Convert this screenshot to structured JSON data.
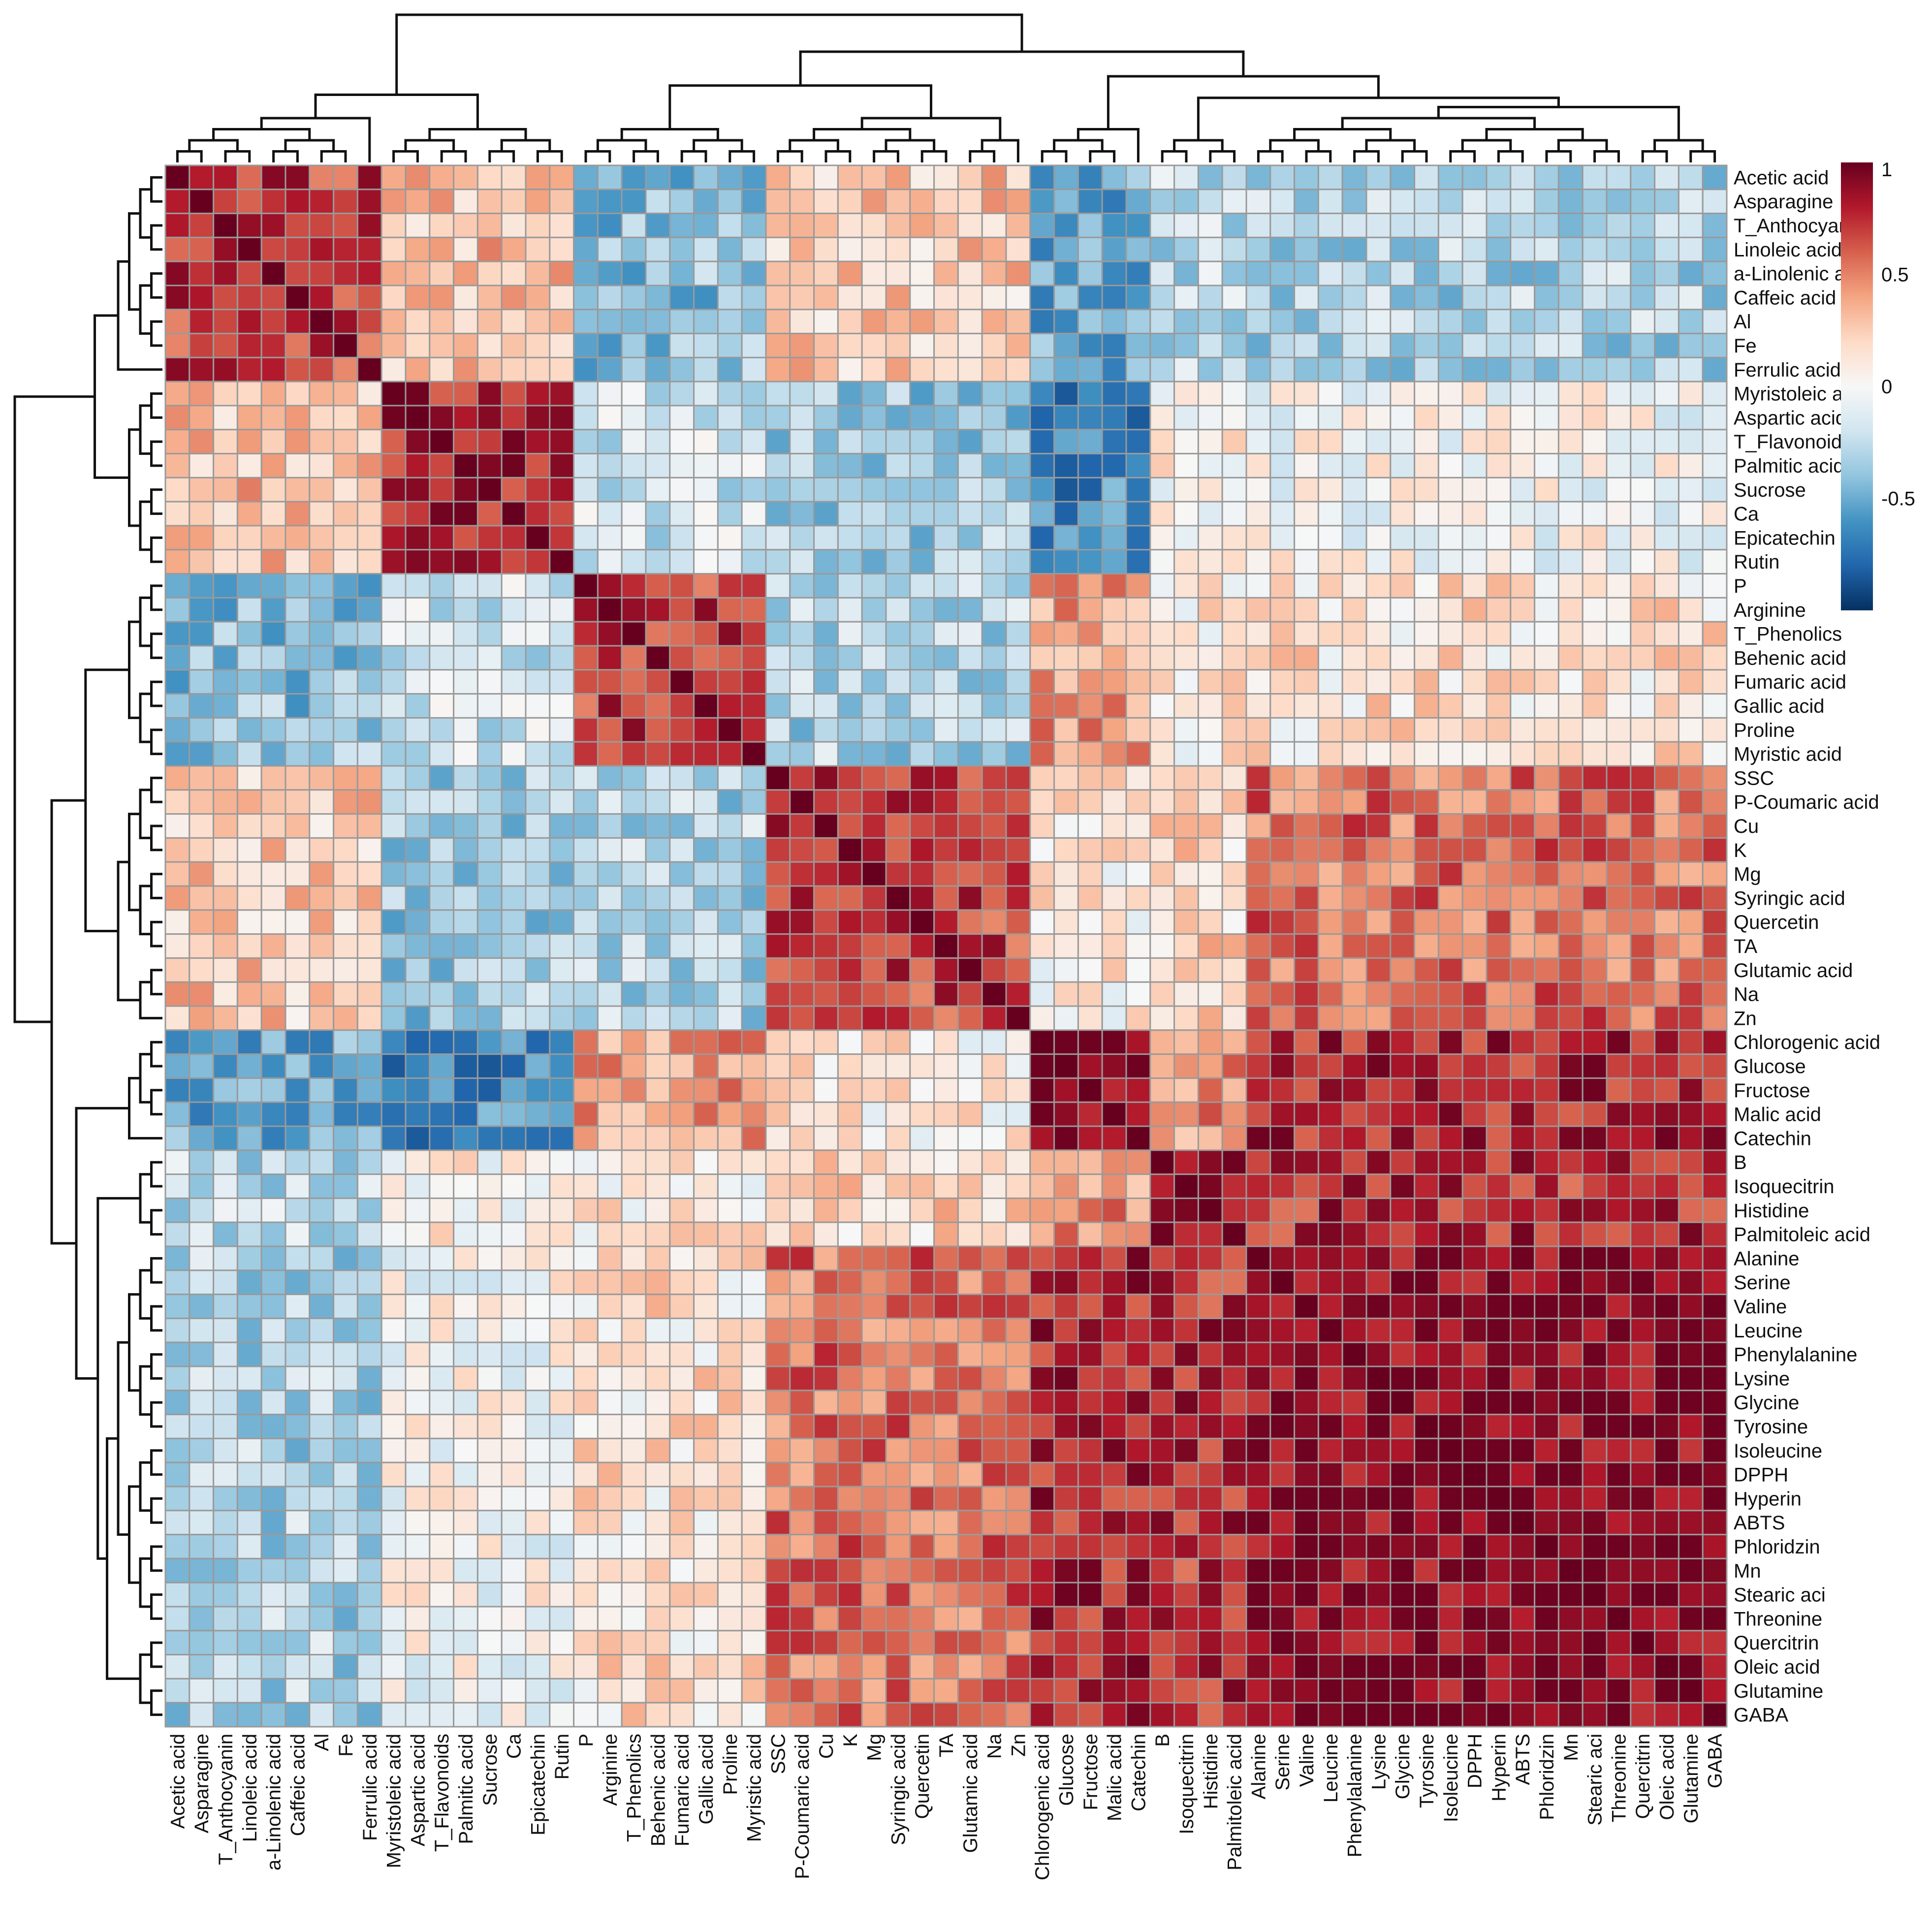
{
  "chart_data": {
    "type": "heatmap",
    "title": "",
    "labels": [
      "Acetic acid",
      "Asparagine",
      "T_Anthocyanin",
      "Linoleic acid",
      "a-Linolenic acid",
      "Caffeic acid",
      "Al",
      "Fe",
      "Ferrulic acid",
      "Myristoleic acid",
      "Aspartic acid",
      "T_Flavonoids",
      "Palmitic acid",
      "Sucrose",
      "Ca",
      "Epicatechin",
      "Rutin",
      "P",
      "Arginine",
      "T_Phenolics",
      "Behenic acid",
      "Fumaric acid",
      "Gallic acid",
      "Proline",
      "Myristic acid",
      "SSC",
      "P-Coumaric acid",
      "Cu",
      "K",
      "Mg",
      "Syringic acid",
      "Quercetin",
      "TA",
      "Glutamic acid",
      "Na",
      "Zn",
      "Chlorogenic acid",
      "Glucose",
      "Fructose",
      "Malic acid",
      "Catechin",
      "B",
      "Isoquecitrin",
      "Histidine",
      "Palmitoleic acid",
      "Alanine",
      "Serine",
      "Valine",
      "Leucine",
      "Phenylalanine",
      "Lysine",
      "Glycine",
      "Tyrosine",
      "Isoleucine",
      "DPPH",
      "Hyperin",
      "ABTS",
      "Phloridzin",
      "Mn",
      "Stearic aci",
      "Threonine",
      "Quercitrin",
      "Oleic acid",
      "Glutamine",
      "GABA"
    ],
    "clusters": [
      9,
      8,
      8,
      11,
      5,
      4,
      20
    ],
    "block_means": [
      [
        0.7,
        0.3,
        -0.4,
        0.25,
        -0.5,
        -0.25,
        -0.3
      ],
      [
        0.3,
        0.8,
        -0.2,
        -0.35,
        -0.65,
        0.05,
        0.0
      ],
      [
        -0.4,
        -0.2,
        0.7,
        -0.3,
        0.4,
        0.1,
        0.15
      ],
      [
        0.25,
        -0.35,
        -0.3,
        0.7,
        0.1,
        0.2,
        0.55
      ],
      [
        -0.5,
        -0.65,
        0.4,
        0.1,
        0.95,
        0.45,
        0.8
      ],
      [
        -0.25,
        0.05,
        0.1,
        0.2,
        0.45,
        0.8,
        0.75
      ],
      [
        -0.3,
        0.0,
        0.15,
        0.55,
        0.8,
        0.75,
        0.93
      ]
    ],
    "colorbar": {
      "range": [
        -1,
        1
      ],
      "ticks": [
        1,
        0.5,
        0,
        -0.5
      ],
      "tick_labels": [
        "1",
        "0.5",
        "0",
        "-0.5"
      ],
      "colors": [
        "#053061",
        "#2166ac",
        "#4393c3",
        "#92c5de",
        "#d1e5f0",
        "#f7f7f7",
        "#fddbc7",
        "#f4a582",
        "#d6604d",
        "#b2182b",
        "#67001f"
      ]
    },
    "dendrogram": {
      "present": true,
      "position": "top and left"
    },
    "cell_border_color": "#9a9a9a"
  }
}
